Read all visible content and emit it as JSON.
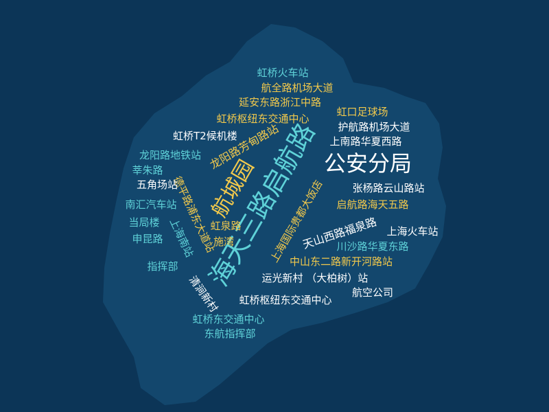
{
  "chart_data": {
    "type": "wordcloud",
    "colors": {
      "background": "#0c3557",
      "shape": "#13476d",
      "palette": [
        "#ffffff",
        "#f2c94c",
        "#5fd2d8"
      ]
    },
    "words": [
      {
        "text": "海天三路启航路",
        "weight": 38,
        "color": "#5fd2d8"
      },
      {
        "text": "公安分局",
        "weight": 32,
        "color": "#ffffff"
      },
      {
        "text": "航城园",
        "weight": 30,
        "color": "#f2c94c"
      },
      {
        "text": "上海国际贵都大饭店",
        "weight": 15,
        "color": "#f2c94c"
      },
      {
        "text": "龙阳路芳甸路站",
        "weight": 16,
        "color": "#f2c94c"
      },
      {
        "text": "德平路浦东大道站",
        "weight": 15,
        "color": "#f2c94c"
      },
      {
        "text": "上海南站",
        "weight": 15,
        "color": "#5fd2d8"
      },
      {
        "text": "天山西路福泉路",
        "weight": 16,
        "color": "#ffffff"
      },
      {
        "text": "清涧新村",
        "weight": 15,
        "color": "#ffffff"
      },
      {
        "text": "虹桥火车站",
        "weight": 15,
        "color": "#5fd2d8"
      },
      {
        "text": "航全路机场大道",
        "weight": 15,
        "color": "#f2c94c"
      },
      {
        "text": "延安东路浙江中路",
        "weight": 15,
        "color": "#f2c94c"
      },
      {
        "text": "虹口足球场",
        "weight": 15,
        "color": "#f2c94c"
      },
      {
        "text": "虹桥枢纽东交通中心",
        "weight": 15,
        "color": "#f2c94c"
      },
      {
        "text": "护航路机场大道",
        "weight": 15,
        "color": "#ffffff"
      },
      {
        "text": "虹桥T2候机楼",
        "weight": 15,
        "color": "#ffffff"
      },
      {
        "text": "上南路华夏西路",
        "weight": 15,
        "color": "#ffffff"
      },
      {
        "text": "龙阳路地铁站",
        "weight": 15,
        "color": "#5fd2d8"
      },
      {
        "text": "莘朱路",
        "weight": 15,
        "color": "#5fd2d8"
      },
      {
        "text": "五角场站",
        "weight": 15,
        "color": "#ffffff"
      },
      {
        "text": "张杨路云山路站",
        "weight": 15,
        "color": "#ffffff"
      },
      {
        "text": "南汇汽车站",
        "weight": 15,
        "color": "#5fd2d8"
      },
      {
        "text": "启航路海天五路",
        "weight": 15,
        "color": "#f2c94c"
      },
      {
        "text": "当局楼",
        "weight": 15,
        "color": "#5fd2d8"
      },
      {
        "text": "虹泉路",
        "weight": 15,
        "color": "#f2c94c"
      },
      {
        "text": "上海火车站",
        "weight": 15,
        "color": "#ffffff"
      },
      {
        "text": "申昆路",
        "weight": 15,
        "color": "#5fd2d8"
      },
      {
        "text": "施湾",
        "weight": 15,
        "color": "#f2c94c"
      },
      {
        "text": "川沙路华夏东路",
        "weight": 15,
        "color": "#5fd2d8"
      },
      {
        "text": "中山东二路新开河路站",
        "weight": 15,
        "color": "#f2c94c"
      },
      {
        "text": "指挥部",
        "weight": 15,
        "color": "#5fd2d8"
      },
      {
        "text": "运光新村 （大柏树）站",
        "weight": 15,
        "color": "#ffffff"
      },
      {
        "text": "航空公司",
        "weight": 15,
        "color": "#ffffff"
      },
      {
        "text": "虹桥枢纽东交通中心",
        "weight": 15,
        "color": "#ffffff"
      },
      {
        "text": "虹桥东交通中心",
        "weight": 15,
        "color": "#5fd2d8"
      },
      {
        "text": "东航指挥部",
        "weight": 15,
        "color": "#5fd2d8"
      }
    ]
  }
}
